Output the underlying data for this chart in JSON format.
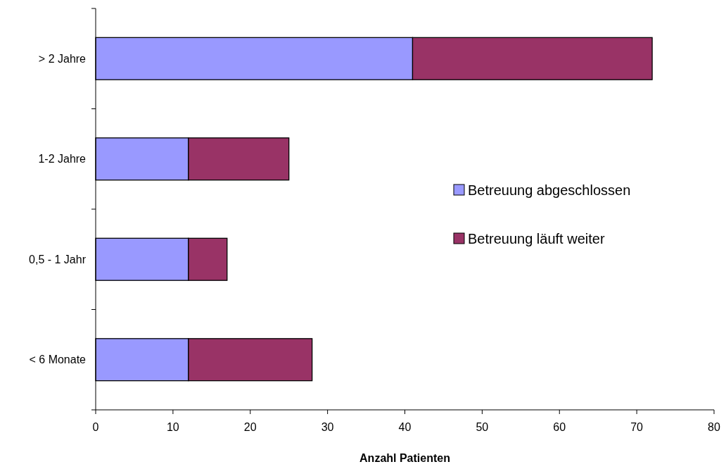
{
  "chart_data": {
    "type": "bar",
    "orientation": "horizontal",
    "stacked": true,
    "xlabel": "Anzahl Patienten",
    "categories": [
      "> 2 Jahre",
      "1-2 Jahre",
      "0,5 - 1 Jahr",
      "< 6 Monate"
    ],
    "series": [
      {
        "name": "Betreuung abgeschlossen",
        "color": "#9999ff",
        "values": [
          41,
          12,
          12,
          12
        ]
      },
      {
        "name": "Betreuung läuft weiter",
        "color": "#993366",
        "values": [
          31,
          13,
          5,
          16
        ]
      }
    ],
    "xlim": [
      0,
      80
    ],
    "xticks": [
      0,
      10,
      20,
      30,
      40,
      50,
      60,
      70,
      80
    ],
    "grid": false,
    "legend": "right"
  }
}
